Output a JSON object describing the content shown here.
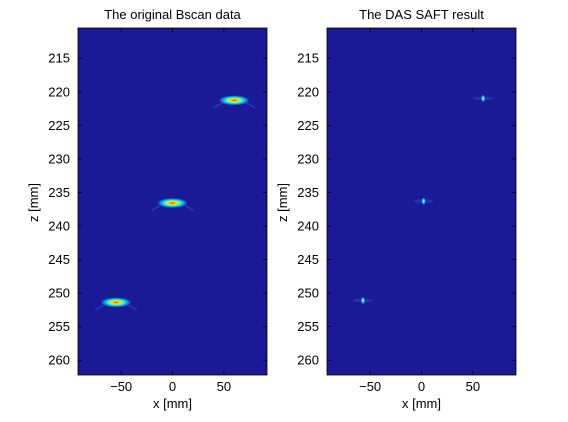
{
  "chart_data": [
    {
      "type": "heatmap",
      "title": "The original Bscan data",
      "xlabel": "x [mm]",
      "ylabel": "z [mm]",
      "xlim": [
        -92,
        92
      ],
      "ylim": [
        210.5,
        262.2
      ],
      "y_reversed": true,
      "xticks": [
        -50,
        0,
        50
      ],
      "yticks": [
        215,
        220,
        225,
        230,
        235,
        240,
        245,
        250,
        255,
        260
      ],
      "colormap": "jet",
      "background_color": "#1a1a96",
      "grid": false,
      "legend": "none",
      "reflectors": [
        {
          "x": 60,
          "z": 221.1,
          "shape": "arc",
          "width_mm": 30,
          "height_mm": 1.2,
          "peak": 1.0
        },
        {
          "x": 0,
          "z": 236.4,
          "shape": "arc",
          "width_mm": 30,
          "height_mm": 1.2,
          "peak": 1.0
        },
        {
          "x": -55,
          "z": 251.2,
          "shape": "arc",
          "width_mm": 30,
          "height_mm": 1.2,
          "peak": 1.0
        }
      ]
    },
    {
      "type": "heatmap",
      "title": "The DAS SAFT result",
      "xlabel": "x [mm]",
      "ylabel": "z [mm]",
      "xlim": [
        -92,
        92
      ],
      "ylim": [
        210.5,
        262.2
      ],
      "y_reversed": true,
      "xticks": [
        -50,
        0,
        50
      ],
      "yticks": [
        215,
        220,
        225,
        230,
        235,
        240,
        245,
        250,
        255,
        260
      ],
      "colormap": "jet",
      "background_color": "#1a1a96",
      "grid": false,
      "legend": "none",
      "reflectors": [
        {
          "x": 60,
          "z": 221.0,
          "shape": "spot",
          "width_mm": 8,
          "height_mm": 0.8,
          "peak": 1.0
        },
        {
          "x": 2,
          "z": 236.3,
          "shape": "spot",
          "width_mm": 8,
          "height_mm": 0.8,
          "peak": 1.0
        },
        {
          "x": -57,
          "z": 251.1,
          "shape": "spot",
          "width_mm": 8,
          "height_mm": 0.8,
          "peak": 1.0
        }
      ]
    }
  ]
}
